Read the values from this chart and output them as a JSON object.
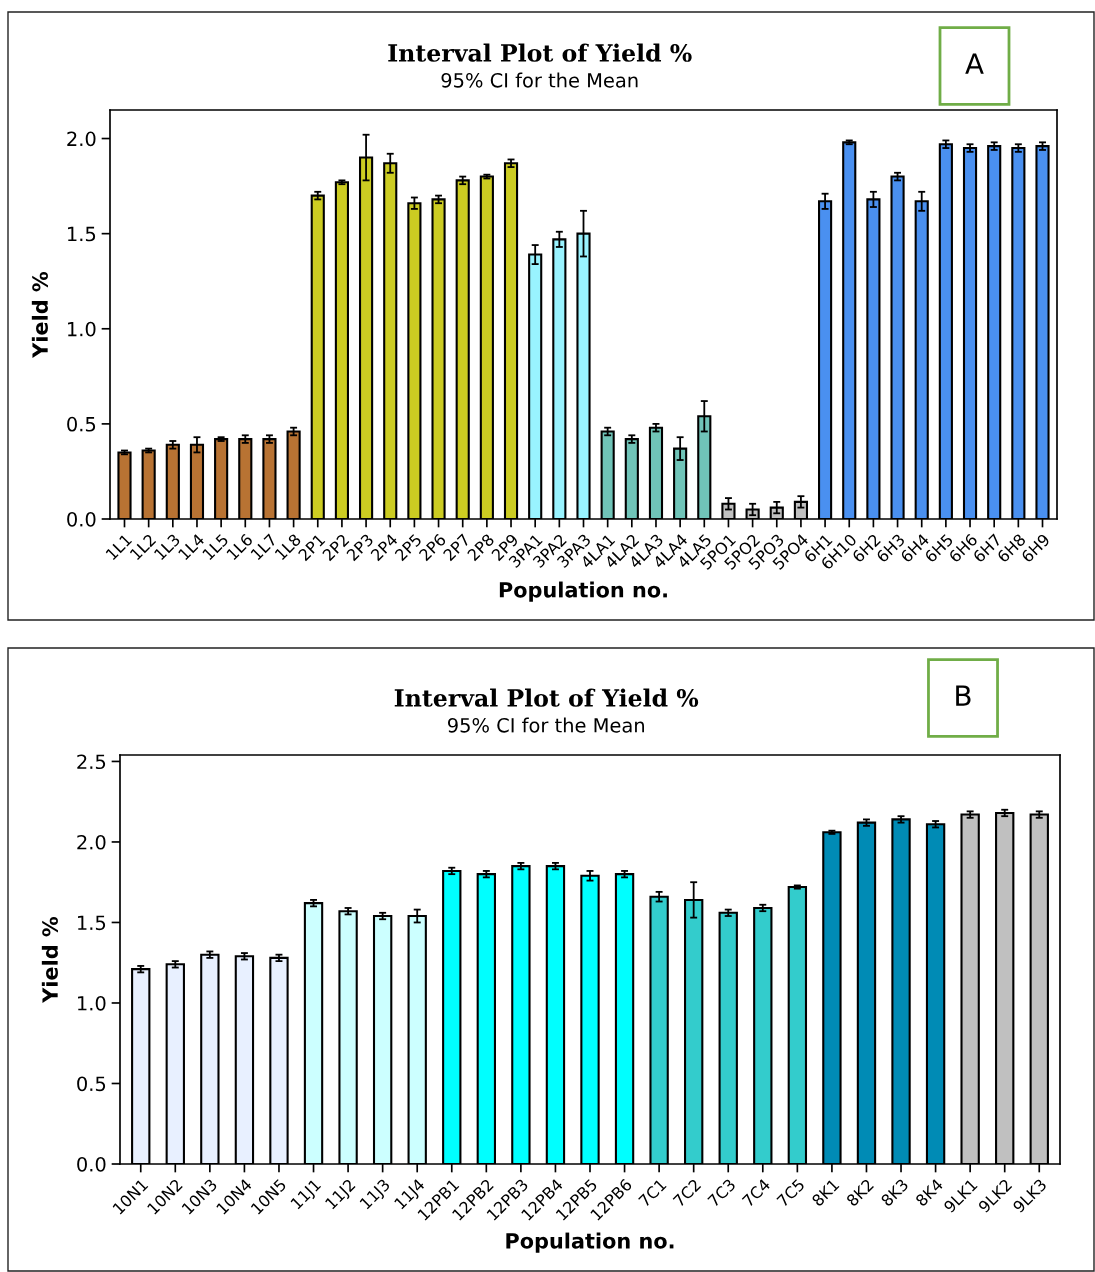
{
  "chart_data": [
    {
      "type": "bar",
      "title": "Interval Plot of Yield %",
      "subtitle": "95% CI for the Mean",
      "xlabel": "Population no.",
      "ylabel": "Yield %",
      "annotations": [
        "A"
      ],
      "categories": [
        "1L1",
        "1L2",
        "1L3",
        "1L4",
        "1L5",
        "1L6",
        "1L7",
        "1L8",
        "2P1",
        "2P2",
        "2P3",
        "2P4",
        "2P5",
        "2P6",
        "2P7",
        "2P8",
        "2P9",
        "3PA1",
        "3PA2",
        "3PA3",
        "4LA1",
        "4LA2",
        "4LA3",
        "4LA4",
        "4LA5",
        "5PO1",
        "5PO2",
        "5PO3",
        "5PO4",
        "6H1",
        "6H10",
        "6H2",
        "6H3",
        "6H4",
        "6H5",
        "6H6",
        "6H7",
        "6H8",
        "6H9"
      ],
      "values": [
        0.35,
        0.36,
        0.39,
        0.39,
        0.42,
        0.42,
        0.42,
        0.46,
        1.7,
        1.77,
        1.9,
        1.87,
        1.66,
        1.68,
        1.78,
        1.8,
        1.87,
        1.39,
        1.47,
        1.5,
        0.46,
        0.42,
        0.48,
        0.37,
        0.54,
        0.08,
        0.05,
        0.06,
        0.09,
        1.67,
        1.98,
        1.68,
        1.8,
        1.67,
        1.97,
        1.95,
        1.96,
        1.95,
        1.96
      ],
      "errors": [
        0.01,
        0.01,
        0.02,
        0.04,
        0.01,
        0.02,
        0.02,
        0.02,
        0.02,
        0.01,
        0.12,
        0.05,
        0.03,
        0.02,
        0.02,
        0.01,
        0.02,
        0.05,
        0.04,
        0.12,
        0.02,
        0.02,
        0.02,
        0.06,
        0.08,
        0.03,
        0.03,
        0.03,
        0.03,
        0.04,
        0.01,
        0.04,
        0.02,
        0.05,
        0.02,
        0.02,
        0.02,
        0.02,
        0.02
      ],
      "colors": [
        "#b87333",
        "#b87333",
        "#b87333",
        "#b87333",
        "#b87333",
        "#b87333",
        "#b87333",
        "#b87333",
        "#cccc22",
        "#cccc22",
        "#cccc22",
        "#cccc22",
        "#cccc22",
        "#cccc22",
        "#cccc22",
        "#cccc22",
        "#cccc22",
        "#99f3ff",
        "#99f3ff",
        "#99f3ff",
        "#70c4b8",
        "#70c4b8",
        "#70c4b8",
        "#70c4b8",
        "#70c4b8",
        "#c0c0c0",
        "#c0c0c0",
        "#c0c0c0",
        "#c0c0c0",
        "#4a90f0",
        "#4a90f0",
        "#4a90f0",
        "#4a90f0",
        "#4a90f0",
        "#4a90f0",
        "#4a90f0",
        "#4a90f0",
        "#4a90f0",
        "#4a90f0"
      ],
      "ylim": [
        0,
        2.15
      ],
      "yticks": [
        {
          "value": 0,
          "label": "0.0"
        },
        {
          "value": 0.5,
          "label": "0.5"
        },
        {
          "value": 1,
          "label": "1.0"
        },
        {
          "value": 1.5,
          "label": "1.5"
        },
        {
          "value": 2,
          "label": "2.0"
        }
      ],
      "grid": false,
      "legend": false
    },
    {
      "type": "bar",
      "title": "Interval Plot of Yield %",
      "subtitle": "95% CI for the Mean",
      "xlabel": "Population no.",
      "ylabel": "Yield %",
      "annotations": [
        "B"
      ],
      "categories": [
        "10N1",
        "10N2",
        "10N3",
        "10N4",
        "10N5",
        "11J1",
        "11J2",
        "11J3",
        "11J4",
        "12PB1",
        "12PB2",
        "12PB3",
        "12PB4",
        "12PB5",
        "12PB6",
        "7C1",
        "7C2",
        "7C3",
        "7C4",
        "7C5",
        "8K1",
        "8K2",
        "8K3",
        "8K4",
        "9LK1",
        "9LK2",
        "9LK3"
      ],
      "values": [
        1.21,
        1.24,
        1.3,
        1.29,
        1.28,
        1.62,
        1.57,
        1.54,
        1.54,
        1.82,
        1.8,
        1.85,
        1.85,
        1.79,
        1.8,
        1.66,
        1.64,
        1.56,
        1.59,
        1.72,
        2.06,
        2.12,
        2.14,
        2.11,
        2.17,
        2.18,
        2.17
      ],
      "errors": [
        0.02,
        0.02,
        0.02,
        0.02,
        0.02,
        0.02,
        0.02,
        0.02,
        0.04,
        0.02,
        0.02,
        0.02,
        0.02,
        0.03,
        0.02,
        0.03,
        0.11,
        0.02,
        0.02,
        0.01,
        0.01,
        0.02,
        0.02,
        0.02,
        0.02,
        0.02,
        0.02
      ],
      "colors": [
        "#e8f0ff",
        "#e8f0ff",
        "#e8f0ff",
        "#e8f0ff",
        "#e8f0ff",
        "#ccffff",
        "#ccffff",
        "#ccffff",
        "#ccffff",
        "#00ffff",
        "#00ffff",
        "#00ffff",
        "#00ffff",
        "#00ffff",
        "#00ffff",
        "#33cccc",
        "#33cccc",
        "#33cccc",
        "#33cccc",
        "#33cccc",
        "#008bb5",
        "#008bb5",
        "#008bb5",
        "#008bb5",
        "#c0c0c0",
        "#c0c0c0",
        "#c0c0c0"
      ],
      "ylim": [
        0,
        2.54
      ],
      "yticks": [
        {
          "value": 0,
          "label": "0.0"
        },
        {
          "value": 0.5,
          "label": "0.5"
        },
        {
          "value": 1,
          "label": "1.0"
        },
        {
          "value": 1.5,
          "label": "1.5"
        },
        {
          "value": 2,
          "label": "2.0"
        },
        {
          "value": 2.5,
          "label": "2.5"
        }
      ],
      "grid": false,
      "legend": false
    }
  ]
}
